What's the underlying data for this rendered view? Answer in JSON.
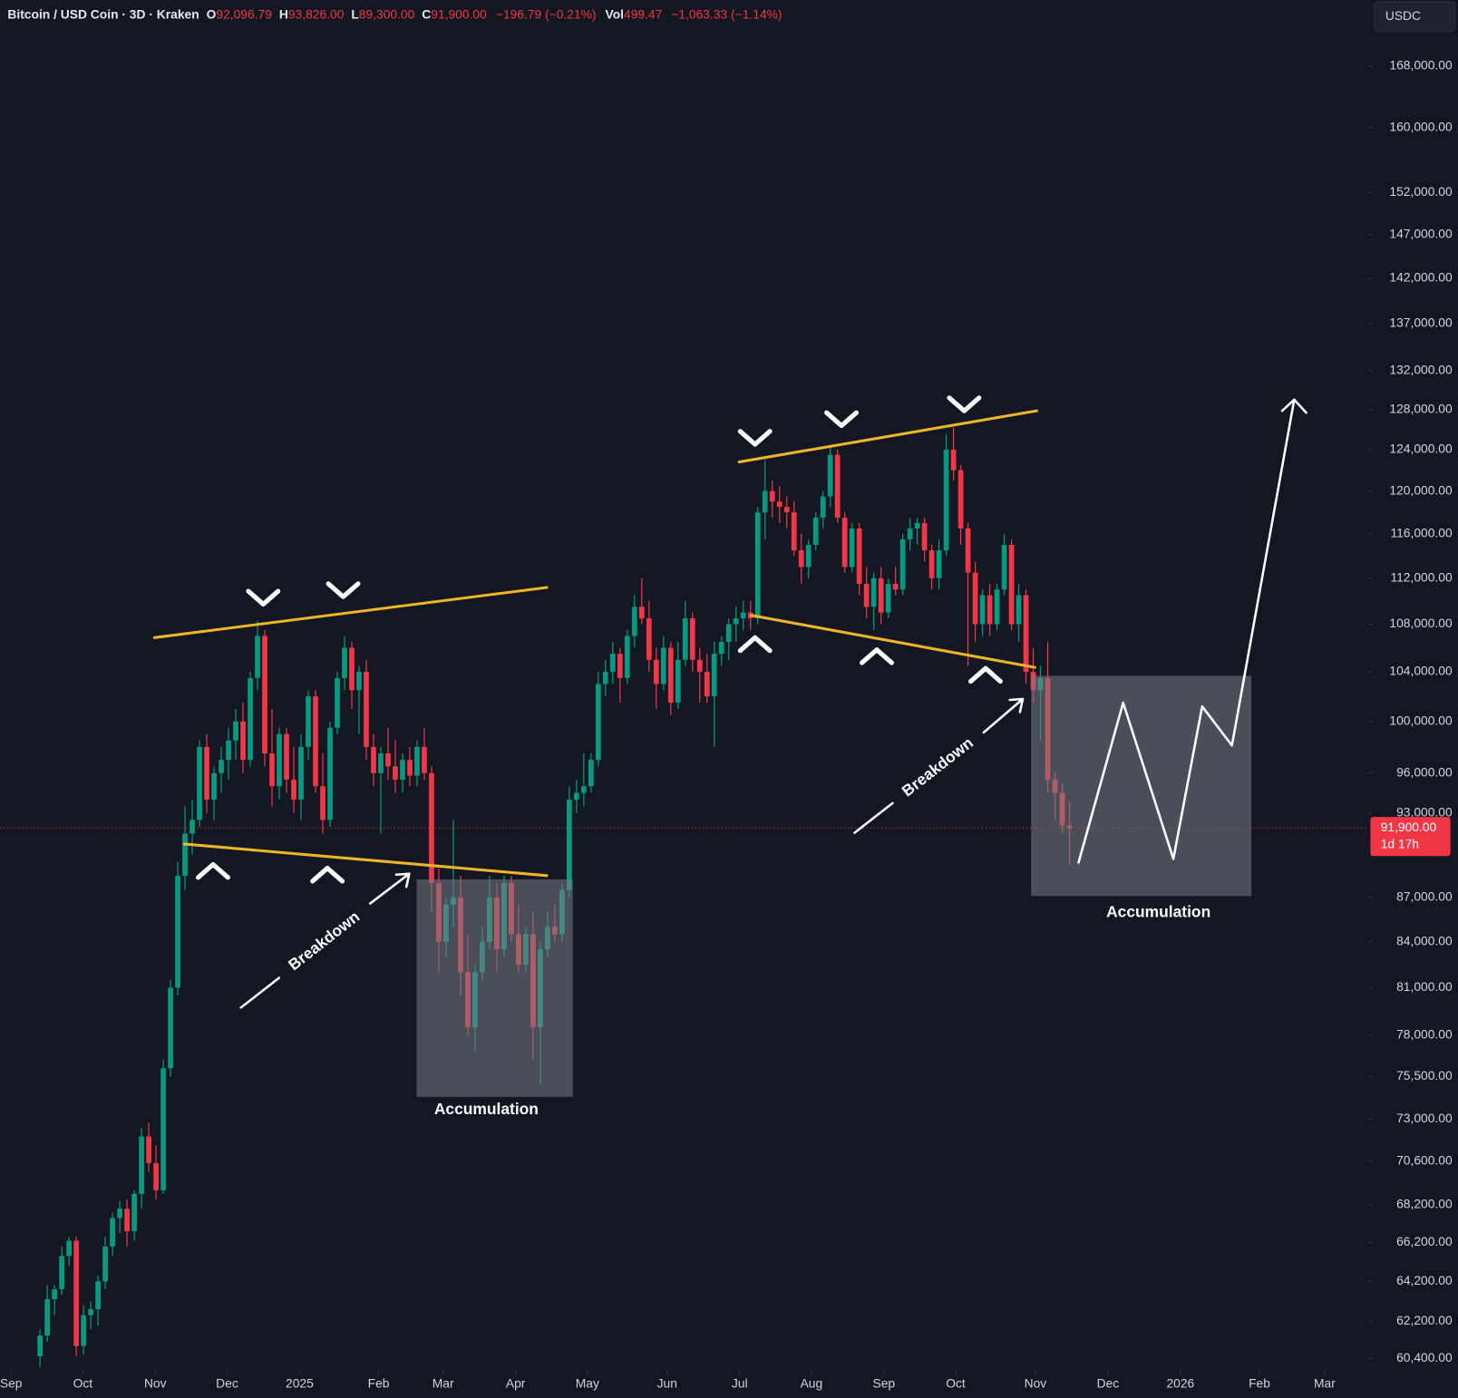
{
  "chart_data": {
    "type": "candlestick",
    "header": {
      "symbol": "Bitcoin / USD Coin · 3D · Kraken",
      "o_label": "O",
      "o": "92,096.79",
      "h_label": "H",
      "h": "93,826.00",
      "l_label": "L",
      "l": "89,300.00",
      "c_label": "C",
      "c": "91,900.00",
      "change": "−196.79 (−0.21%)",
      "vol_label": "Vol",
      "vol": "499.47",
      "vol_change": "−1,063.33 (−1.14%)"
    },
    "currency": "USDC",
    "up_color": "#089981",
    "down_color": "#f23645",
    "log_scale": true,
    "ylim": [
      59800,
      177000
    ],
    "yticks": [
      {
        "value": 168000,
        "label": "168,000.00"
      },
      {
        "value": 160000,
        "label": "160,000.00"
      },
      {
        "value": 152000,
        "label": "152,000.00"
      },
      {
        "value": 147000,
        "label": "147,000.00"
      },
      {
        "value": 142000,
        "label": "142,000.00"
      },
      {
        "value": 137000,
        "label": "137,000.00"
      },
      {
        "value": 132000,
        "label": "132,000.00"
      },
      {
        "value": 128000,
        "label": "128,000.00"
      },
      {
        "value": 124000,
        "label": "124,000.00"
      },
      {
        "value": 120000,
        "label": "120,000.00"
      },
      {
        "value": 116000,
        "label": "116,000.00"
      },
      {
        "value": 112000,
        "label": "112,000.00"
      },
      {
        "value": 108000,
        "label": "108,000.00"
      },
      {
        "value": 104000,
        "label": "104,000.00"
      },
      {
        "value": 100000,
        "label": "100,000.00"
      },
      {
        "value": 96000,
        "label": "96,000.00"
      },
      {
        "value": 93000,
        "label": "93,000.00"
      },
      {
        "value": 87000,
        "label": "87,000.00"
      },
      {
        "value": 84000,
        "label": "84,000.00"
      },
      {
        "value": 81000,
        "label": "81,000.00"
      },
      {
        "value": 78000,
        "label": "78,000.00"
      },
      {
        "value": 75500,
        "label": "75,500.00"
      },
      {
        "value": 73000,
        "label": "73,000.00"
      },
      {
        "value": 70600,
        "label": "70,600.00"
      },
      {
        "value": 68200,
        "label": "68,200.00"
      },
      {
        "value": 66200,
        "label": "66,200.00"
      },
      {
        "value": 64200,
        "label": "64,200.00"
      },
      {
        "value": 62200,
        "label": "62,200.00"
      },
      {
        "value": 60400,
        "label": "60,400.00"
      }
    ],
    "xlim": [
      -5.5,
      183
    ],
    "xticks": [
      {
        "value": -4,
        "label": "Sep"
      },
      {
        "value": 5.9,
        "label": "Oct"
      },
      {
        "value": 15.9,
        "label": "Nov"
      },
      {
        "value": 25.8,
        "label": "Dec"
      },
      {
        "value": 35.8,
        "label": "2025"
      },
      {
        "value": 46.7,
        "label": "Feb"
      },
      {
        "value": 55.6,
        "label": "Mar"
      },
      {
        "value": 65.6,
        "label": "Apr"
      },
      {
        "value": 75.5,
        "label": "May"
      },
      {
        "value": 86.5,
        "label": "Jun"
      },
      {
        "value": 96.5,
        "label": "Jul"
      },
      {
        "value": 106.4,
        "label": "Aug"
      },
      {
        "value": 116.4,
        "label": "Sep"
      },
      {
        "value": 126.3,
        "label": "Oct"
      },
      {
        "value": 137.3,
        "label": "Nov"
      },
      {
        "value": 147.3,
        "label": "Dec"
      },
      {
        "value": 157.3,
        "label": "2026"
      },
      {
        "value": 168.2,
        "label": "Feb"
      },
      {
        "value": 177.2,
        "label": "Mar"
      }
    ],
    "last_price": {
      "value": 91900,
      "label": "91,900.00"
    },
    "countdown": "1d 17h",
    "annotations": {
      "breakdown_1": "Breakdown",
      "breakdown_2": "Breakdown",
      "accumulation_1": "Accumulation",
      "accumulation_2": "Accumulation"
    },
    "candles": [
      [
        60500,
        61800,
        60000,
        61500
      ],
      [
        61500,
        64000,
        61200,
        63300
      ],
      [
        63300,
        64000,
        62500,
        63800
      ],
      [
        63800,
        66000,
        63500,
        65500
      ],
      [
        65500,
        66500,
        65000,
        66300
      ],
      [
        66300,
        66500,
        60500,
        61000
      ],
      [
        61000,
        63000,
        60600,
        62500
      ],
      [
        62500,
        63200,
        61800,
        62800
      ],
      [
        62800,
        64500,
        62000,
        64200
      ],
      [
        64200,
        66500,
        63800,
        66000
      ],
      [
        66000,
        67800,
        65500,
        67500
      ],
      [
        67500,
        68400,
        66700,
        68000
      ],
      [
        68000,
        68500,
        66000,
        66800
      ],
      [
        66800,
        69000,
        66300,
        68800
      ],
      [
        68800,
        72500,
        68000,
        72000
      ],
      [
        72000,
        72800,
        70000,
        70500
      ],
      [
        70500,
        71500,
        68500,
        69000
      ],
      [
        69000,
        76500,
        68800,
        76000
      ],
      [
        76000,
        81500,
        75500,
        81000
      ],
      [
        81000,
        89500,
        80500,
        88500
      ],
      [
        88500,
        93500,
        87500,
        91500
      ],
      [
        91500,
        94000,
        90000,
        92500
      ],
      [
        92500,
        98500,
        92000,
        98000
      ],
      [
        98000,
        99000,
        93000,
        94000
      ],
      [
        94000,
        96500,
        92500,
        96000
      ],
      [
        96000,
        98000,
        94500,
        97000
      ],
      [
        97000,
        99500,
        95500,
        98500
      ],
      [
        98500,
        101000,
        97000,
        100000
      ],
      [
        100000,
        101500,
        96000,
        97000
      ],
      [
        97000,
        104000,
        96500,
        103500
      ],
      [
        103500,
        108300,
        102500,
        107000
      ],
      [
        107000,
        107500,
        96500,
        97500
      ],
      [
        97500,
        101000,
        93500,
        95000
      ],
      [
        95000,
        99500,
        94000,
        99000
      ],
      [
        99000,
        99500,
        94500,
        95500
      ],
      [
        95500,
        98000,
        93000,
        94000
      ],
      [
        94000,
        99000,
        92500,
        98000
      ],
      [
        98000,
        102500,
        97000,
        102000
      ],
      [
        102000,
        102500,
        94500,
        95000
      ],
      [
        95000,
        97500,
        91500,
        92500
      ],
      [
        92500,
        100000,
        92000,
        99500
      ],
      [
        99500,
        104000,
        99000,
        103500
      ],
      [
        103500,
        107000,
        102500,
        106000
      ],
      [
        106000,
        106500,
        101000,
        102500
      ],
      [
        102500,
        104500,
        99000,
        104000
      ],
      [
        104000,
        105000,
        97000,
        98000
      ],
      [
        98000,
        99000,
        95000,
        96000
      ],
      [
        96000,
        98000,
        91500,
        97500
      ],
      [
        97500,
        99500,
        95500,
        96500
      ],
      [
        96500,
        98500,
        94500,
        95500
      ],
      [
        95500,
        97500,
        94500,
        97000
      ],
      [
        97000,
        98000,
        95000,
        95800
      ],
      [
        95800,
        98500,
        95000,
        98000
      ],
      [
        98000,
        99500,
        95500,
        96000
      ],
      [
        96000,
        96500,
        86000,
        88000
      ],
      [
        88000,
        89000,
        82000,
        84000
      ],
      [
        84000,
        87000,
        83000,
        86500
      ],
      [
        86500,
        92500,
        85000,
        87000
      ],
      [
        87000,
        88500,
        80500,
        82000
      ],
      [
        82000,
        84500,
        78000,
        78500
      ],
      [
        78500,
        82500,
        77000,
        82000
      ],
      [
        82000,
        85000,
        81500,
        84000
      ],
      [
        84000,
        88500,
        83500,
        87000
      ],
      [
        87000,
        88000,
        82000,
        83500
      ],
      [
        83500,
        88500,
        83000,
        88000
      ],
      [
        88000,
        88500,
        84000,
        84500
      ],
      [
        84500,
        86500,
        82000,
        82500
      ],
      [
        82500,
        85000,
        82000,
        84500
      ],
      [
        84500,
        86000,
        76500,
        78500
      ],
      [
        78500,
        84000,
        75000,
        83500
      ],
      [
        83500,
        86000,
        83000,
        85000
      ],
      [
        85000,
        86500,
        84000,
        84500
      ],
      [
        84500,
        88000,
        84000,
        87500
      ],
      [
        87500,
        95000,
        87000,
        94000
      ],
      [
        94000,
        95500,
        93000,
        94500
      ],
      [
        94500,
        97500,
        93500,
        95000
      ],
      [
        95000,
        97500,
        94500,
        97000
      ],
      [
        97000,
        104000,
        96500,
        103000
      ],
      [
        103000,
        105000,
        102000,
        104000
      ],
      [
        104000,
        106500,
        103000,
        105500
      ],
      [
        105500,
        106000,
        101500,
        103500
      ],
      [
        103500,
        107500,
        103000,
        107000
      ],
      [
        107000,
        110500,
        106000,
        109500
      ],
      [
        109500,
        112000,
        108000,
        108500
      ],
      [
        108500,
        110000,
        104000,
        105000
      ],
      [
        105000,
        106000,
        101000,
        103000
      ],
      [
        103000,
        107000,
        102500,
        106000
      ],
      [
        106000,
        106500,
        100500,
        101500
      ],
      [
        101500,
        106500,
        101000,
        105000
      ],
      [
        105000,
        110000,
        104500,
        108500
      ],
      [
        108500,
        109000,
        104000,
        105000
      ],
      [
        105000,
        106000,
        101500,
        104000
      ],
      [
        104000,
        105500,
        101500,
        102000
      ],
      [
        102000,
        106500,
        98000,
        105500
      ],
      [
        105500,
        107000,
        104500,
        106500
      ],
      [
        106500,
        108500,
        105000,
        108000
      ],
      [
        108000,
        109500,
        106500,
        108500
      ],
      [
        108500,
        110000,
        107500,
        109000
      ],
      [
        109000,
        110000,
        107500,
        108500
      ],
      [
        108500,
        118500,
        108000,
        118000
      ],
      [
        118000,
        123000,
        115500,
        120000
      ],
      [
        120000,
        121000,
        117500,
        119000
      ],
      [
        119000,
        120500,
        117000,
        118500
      ],
      [
        118500,
        119500,
        116500,
        118000
      ],
      [
        118000,
        119000,
        114000,
        114500
      ],
      [
        114500,
        116000,
        111500,
        113000
      ],
      [
        113000,
        115500,
        112000,
        115000
      ],
      [
        115000,
        118000,
        114500,
        117500
      ],
      [
        117500,
        120000,
        116500,
        119500
      ],
      [
        119500,
        124500,
        118500,
        123500
      ],
      [
        123500,
        124000,
        117000,
        117500
      ],
      [
        117500,
        118000,
        112500,
        113000
      ],
      [
        113000,
        117000,
        112500,
        116500
      ],
      [
        116500,
        117000,
        110500,
        111500
      ],
      [
        111500,
        113000,
        108500,
        109500
      ],
      [
        109500,
        112500,
        107500,
        112000
      ],
      [
        112000,
        113000,
        108000,
        109000
      ],
      [
        109000,
        112000,
        108500,
        111500
      ],
      [
        111500,
        113000,
        110500,
        111000
      ],
      [
        111000,
        116000,
        110500,
        115500
      ],
      [
        115500,
        117500,
        114500,
        116500
      ],
      [
        116500,
        117500,
        115000,
        117000
      ],
      [
        117000,
        117500,
        113500,
        114500
      ],
      [
        114500,
        115000,
        111000,
        112000
      ],
      [
        112000,
        115500,
        111000,
        114500
      ],
      [
        114500,
        125500,
        114000,
        124000
      ],
      [
        124000,
        126200,
        121000,
        122000
      ],
      [
        122000,
        122500,
        115000,
        116500
      ],
      [
        116500,
        117000,
        104500,
        112500
      ],
      [
        112500,
        113500,
        106500,
        108000
      ],
      [
        108000,
        111000,
        107000,
        110500
      ],
      [
        110500,
        111500,
        107000,
        108000
      ],
      [
        108000,
        111500,
        107500,
        111000
      ],
      [
        111000,
        116000,
        110500,
        115000
      ],
      [
        115000,
        115500,
        107500,
        108000
      ],
      [
        108000,
        111500,
        106500,
        110500
      ],
      [
        110500,
        111000,
        103000,
        104000
      ],
      [
        104000,
        106000,
        101500,
        102500
      ],
      [
        102500,
        104500,
        98500,
        103500
      ],
      [
        103500,
        106500,
        94500,
        95500
      ],
      [
        95500,
        96000,
        92500,
        94500
      ],
      [
        94500,
        95200,
        91500,
        92100
      ],
      [
        92096.79,
        93826,
        89300,
        91900
      ]
    ]
  }
}
